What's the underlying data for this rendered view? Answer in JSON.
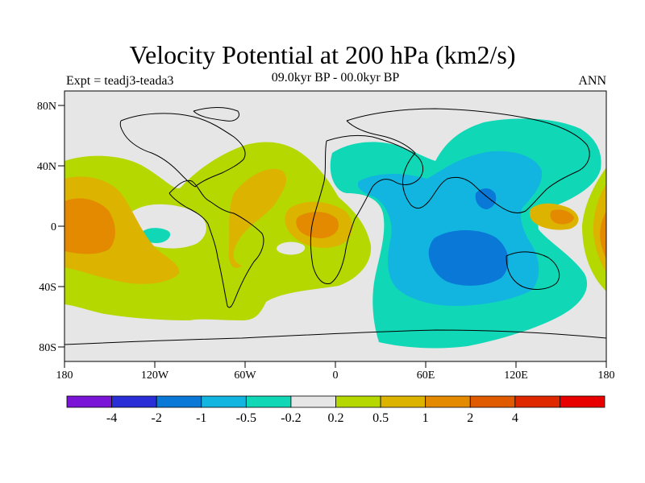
{
  "title": "Velocity Potential at 200 hPa (km2/s)",
  "subtitle": "09.0kyr BP - 00.0kyr BP",
  "left_label": "Expt = teadj3-teada3",
  "right_label": "ANN",
  "lat_ticks": [
    "80N",
    "40N",
    "0",
    "40S",
    "80S"
  ],
  "lon_ticks": [
    "180",
    "120W",
    "60W",
    "0",
    "60E",
    "120E",
    "180"
  ],
  "colorbar": {
    "colors": [
      "#7a14d6",
      "#2a2ed6",
      "#0a78d6",
      "#12b4e0",
      "#10d8b6",
      "#e6e6e6",
      "#b4d800",
      "#dcb400",
      "#e48a00",
      "#e05a00",
      "#e02800",
      "#e80000"
    ],
    "labels": [
      "-4",
      "-2",
      "-1",
      "-0.5",
      "-0.2",
      "0.2",
      "0.5",
      "1",
      "2",
      "4"
    ]
  },
  "map": {
    "background_color": "#e6e6e6",
    "coastline_color": "#000000"
  }
}
